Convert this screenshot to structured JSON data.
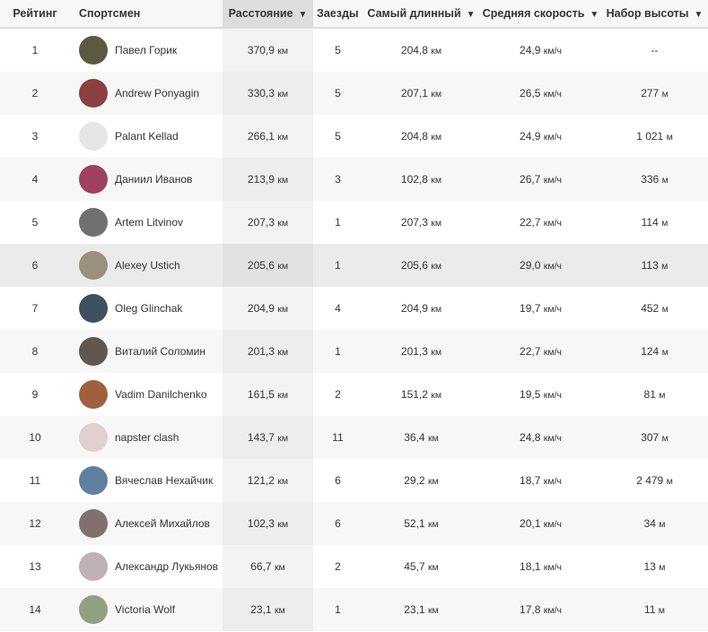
{
  "headers": {
    "rank": "Рейтинг",
    "athlete": "Спортсмен",
    "distance": "Расстояние",
    "rides": "Заезды",
    "longest": "Самый длинный",
    "speed": "Средняя скорость",
    "elevation": "Набор высоты"
  },
  "sort_arrow": "▼",
  "sorted_column": "distance",
  "highlighted_rank": "6",
  "rows": [
    {
      "rank": "1",
      "name": "Павел Горик",
      "distance": "370,9",
      "rides": "5",
      "longest": "204,8",
      "speed": "24,9",
      "elev": "--",
      "elev_unit": "",
      "avatar": "#5a5a40"
    },
    {
      "rank": "2",
      "name": "Andrew Ponyagin",
      "distance": "330,3",
      "rides": "5",
      "longest": "207,1",
      "speed": "26,5",
      "elev": "277",
      "elev_unit": "м",
      "avatar": "#8a4040"
    },
    {
      "rank": "3",
      "name": "Palant Kellad",
      "distance": "266,1",
      "rides": "5",
      "longest": "204,8",
      "speed": "24,9",
      "elev": "1 021",
      "elev_unit": "м",
      "avatar": "#e6e6e6"
    },
    {
      "rank": "4",
      "name": "Даниил Иванов",
      "distance": "213,9",
      "rides": "3",
      "longest": "102,8",
      "speed": "26,7",
      "elev": "336",
      "elev_unit": "м",
      "avatar": "#a04060"
    },
    {
      "rank": "5",
      "name": "Artem Litvinov",
      "distance": "207,3",
      "rides": "1",
      "longest": "207,3",
      "speed": "22,7",
      "elev": "114",
      "elev_unit": "м",
      "avatar": "#707070"
    },
    {
      "rank": "6",
      "name": "Alexey Ustich",
      "distance": "205,6",
      "rides": "1",
      "longest": "205,6",
      "speed": "29,0",
      "elev": "113",
      "elev_unit": "м",
      "avatar": "#9a9080"
    },
    {
      "rank": "7",
      "name": "Oleg Glinchak",
      "distance": "204,9",
      "rides": "4",
      "longest": "204,9",
      "speed": "19,7",
      "elev": "452",
      "elev_unit": "м",
      "avatar": "#405060"
    },
    {
      "rank": "8",
      "name": "Виталий Соломин",
      "distance": "201,3",
      "rides": "1",
      "longest": "201,3",
      "speed": "22,7",
      "elev": "124",
      "elev_unit": "м",
      "avatar": "#605850"
    },
    {
      "rank": "9",
      "name": "Vadim Danilchenko",
      "distance": "161,5",
      "rides": "2",
      "longest": "151,2",
      "speed": "19,5",
      "elev": "81",
      "elev_unit": "м",
      "avatar": "#a06040"
    },
    {
      "rank": "10",
      "name": "napster clash",
      "distance": "143,7",
      "rides": "11",
      "longest": "36,4",
      "speed": "24,8",
      "elev": "307",
      "elev_unit": "м",
      "avatar": "#e0d0d0"
    },
    {
      "rank": "11",
      "name": "Вячеслав Нехайчик",
      "distance": "121,2",
      "rides": "6",
      "longest": "29,2",
      "speed": "18,7",
      "elev": "2 479",
      "elev_unit": "м",
      "avatar": "#6080a0"
    },
    {
      "rank": "12",
      "name": "Алексей Михайлов",
      "distance": "102,3",
      "rides": "6",
      "longest": "52,1",
      "speed": "20,1",
      "elev": "34",
      "elev_unit": "м",
      "avatar": "#807070"
    },
    {
      "rank": "13",
      "name": "Александр Лукьянов",
      "distance": "66,7",
      "rides": "2",
      "longest": "45,7",
      "speed": "18,1",
      "elev": "13",
      "elev_unit": "м",
      "avatar": "#c0b0b8"
    },
    {
      "rank": "14",
      "name": "Victoria Wolf",
      "distance": "23,1",
      "rides": "1",
      "longest": "23,1",
      "speed": "17,8",
      "elev": "11",
      "elev_unit": "м",
      "avatar": "#90a080"
    }
  ],
  "units": {
    "km": "км",
    "speed": "км/ч"
  }
}
